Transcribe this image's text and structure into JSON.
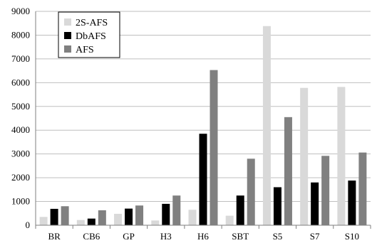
{
  "chart_data": {
    "type": "bar",
    "categories": [
      "BR",
      "CB6",
      "GP",
      "H3",
      "H6",
      "SBT",
      "S5",
      "S7",
      "S10"
    ],
    "series": [
      {
        "name": "2S-AFS",
        "color": "#d9d9d9",
        "values": [
          350,
          220,
          480,
          200,
          650,
          400,
          8380,
          5780,
          5820
        ]
      },
      {
        "name": "DbAFS",
        "color": "#000000",
        "values": [
          690,
          280,
          700,
          900,
          3850,
          1250,
          1600,
          1800,
          1880
        ]
      },
      {
        "name": "AFS",
        "color": "#808080",
        "values": [
          800,
          630,
          830,
          1250,
          6530,
          2800,
          4550,
          2920,
          3060
        ]
      }
    ],
    "title": "",
    "xlabel": "",
    "ylabel": "",
    "ylim": [
      0,
      9000
    ],
    "yticks": [
      "0",
      "1000",
      "2000",
      "3000",
      "4000",
      "5000",
      "6000",
      "7000",
      "8000",
      "9000"
    ],
    "grid": true,
    "legend": "top-left"
  }
}
